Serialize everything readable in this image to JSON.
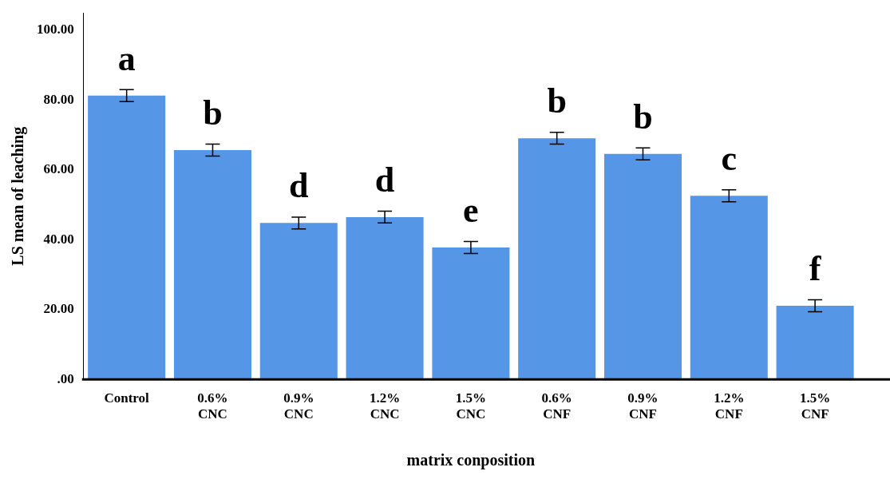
{
  "chart_data": {
    "type": "bar",
    "xlabel": "matrix conposition",
    "ylabel": "LS mean of leaching",
    "categories": [
      "Control",
      "0.6% CNC",
      "0.9% CNC",
      "1.2% CNC",
      "1.5% CNC",
      "0.6% CNF",
      "0.9% CNF",
      "1.2% CNF",
      "1.5% CNF"
    ],
    "values": [
      81.3,
      65.7,
      44.8,
      46.5,
      37.8,
      69.1,
      64.6,
      52.6,
      21.1
    ],
    "errors": [
      1.7,
      1.7,
      1.7,
      1.7,
      1.7,
      1.7,
      1.7,
      1.7,
      1.7
    ],
    "color": "#5596e6",
    "ylim": [
      0,
      105
    ],
    "yticks": [
      {
        "value": 0,
        "label": ".00"
      },
      {
        "value": 20,
        "label": "20.00"
      },
      {
        "value": 40,
        "label": "40.00"
      },
      {
        "value": 60,
        "label": "60.00"
      },
      {
        "value": 80,
        "label": "80.00"
      },
      {
        "value": 100,
        "label": "100.00"
      }
    ],
    "annotations": [
      "a",
      "b",
      "d",
      "d",
      "e",
      "b",
      "b",
      "c",
      "f"
    ],
    "grid": false,
    "legend": false
  }
}
